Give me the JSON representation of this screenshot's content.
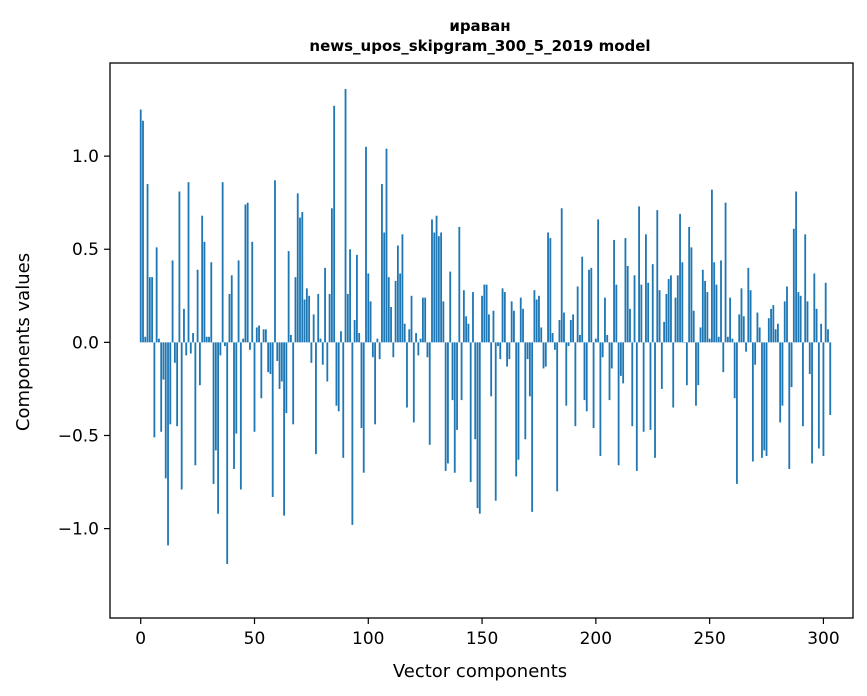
{
  "chart_data": {
    "type": "bar",
    "title": "иравaн",
    "subtitle": "news_upos_skipgram_300_5_2019 model",
    "xlabel": "Vector components",
    "ylabel": "Components values",
    "xlim": [
      -13.5,
      313
    ],
    "ylim": [
      -1.48,
      1.5
    ],
    "x_ticks": [
      0,
      50,
      100,
      150,
      200,
      250,
      300
    ],
    "x_tick_labels": [
      "0",
      "50",
      "100",
      "150",
      "200",
      "250",
      "300"
    ],
    "y_ticks": [
      -1.0,
      -0.5,
      0.0,
      0.5,
      1.0
    ],
    "y_tick_labels": [
      "−1.0",
      "−0.5",
      "0.0",
      "0.5",
      "1.0"
    ],
    "grid": false,
    "bar_color": "#1f77b4",
    "values": [
      1.25,
      1.19,
      0.03,
      0.85,
      0.35,
      0.35,
      -0.51,
      0.51,
      0.02,
      -0.48,
      -0.2,
      -0.73,
      -1.09,
      -0.44,
      0.44,
      -0.11,
      -0.45,
      0.81,
      -0.79,
      0.18,
      -0.07,
      0.86,
      -0.06,
      0.05,
      -0.66,
      0.39,
      -0.23,
      0.68,
      0.54,
      0.03,
      0.03,
      0.43,
      -0.76,
      -0.58,
      -0.92,
      -0.07,
      0.86,
      -0.02,
      -1.19,
      0.26,
      0.36,
      -0.68,
      -0.49,
      0.44,
      -0.79,
      0.02,
      0.74,
      0.75,
      -0.04,
      0.54,
      -0.48,
      0.08,
      0.09,
      -0.3,
      0.07,
      0.07,
      -0.16,
      -0.17,
      -0.83,
      0.87,
      -0.1,
      -0.25,
      -0.21,
      -0.93,
      -0.38,
      0.49,
      0.04,
      -0.44,
      0.35,
      0.8,
      0.67,
      0.7,
      0.23,
      0.29,
      0.25,
      -0.11,
      0.15,
      -0.6,
      0.26,
      0.02,
      -0.12,
      0.4,
      -0.21,
      0.26,
      0.72,
      1.27,
      -0.34,
      -0.37,
      0.06,
      -0.62,
      1.36,
      0.26,
      0.5,
      -0.98,
      0.12,
      0.47,
      0.05,
      -0.46,
      -0.7,
      1.05,
      0.37,
      0.22,
      -0.08,
      -0.44,
      0.02,
      -0.09,
      0.85,
      0.59,
      1.04,
      0.35,
      0.19,
      -0.08,
      0.33,
      0.52,
      0.37,
      0.58,
      0.1,
      -0.35,
      0.07,
      0.25,
      -0.43,
      0.05,
      -0.07,
      0.02,
      0.24,
      0.24,
      -0.08,
      -0.55,
      0.66,
      0.59,
      0.68,
      0.57,
      0.59,
      0.22,
      -0.69,
      -0.65,
      0.38,
      -0.31,
      -0.7,
      -0.47,
      0.62,
      -0.31,
      0.28,
      0.14,
      0.1,
      -0.75,
      0.27,
      -0.52,
      -0.89,
      -0.92,
      0.25,
      0.31,
      0.31,
      0.15,
      -0.29,
      0.17,
      -0.85,
      -0.02,
      -0.09,
      0.29,
      0.27,
      -0.13,
      -0.09,
      0.22,
      0.17,
      -0.72,
      -0.63,
      0.24,
      0.18,
      -0.52,
      -0.09,
      -0.29,
      -0.91,
      0.28,
      0.23,
      0.25,
      0.08,
      -0.14,
      -0.13,
      0.59,
      0.56,
      0.05,
      -0.04,
      -0.8,
      0.12,
      0.72,
      0.16,
      -0.34,
      -0.02,
      0.12,
      0.15,
      -0.45,
      0.3,
      0.04,
      0.46,
      -0.31,
      -0.37,
      0.39,
      0.4,
      -0.46,
      0.02,
      0.66,
      -0.61,
      -0.08,
      0.24,
      0.04,
      -0.31,
      -0.14,
      0.55,
      0.31,
      -0.66,
      -0.18,
      -0.22,
      0.56,
      0.41,
      0.18,
      -0.45,
      0.36,
      -0.69,
      0.73,
      0.31,
      -0.48,
      0.58,
      0.32,
      -0.47,
      0.42,
      -0.62,
      0.71,
      0.28,
      -0.25,
      0.11,
      0.26,
      0.34,
      0.36,
      -0.35,
      0.24,
      0.36,
      0.69,
      0.43,
      0.0,
      -0.23,
      0.62,
      0.51,
      0.17,
      -0.34,
      -0.23,
      0.08,
      0.39,
      0.33,
      0.27,
      0.02,
      0.82,
      0.43,
      0.31,
      0.03,
      0.44,
      -0.16,
      0.75,
      0.03,
      0.24,
      0.02,
      -0.3,
      -0.76,
      0.15,
      0.29,
      0.14,
      -0.05,
      0.4,
      0.28,
      -0.64,
      -0.12,
      0.16,
      0.08,
      -0.62,
      -0.58,
      -0.61,
      0.13,
      0.18,
      0.2,
      0.07,
      0.1,
      -0.43,
      -0.34,
      0.22,
      0.3,
      -0.68,
      -0.24,
      0.61,
      0.81,
      0.27,
      0.25,
      -0.45,
      0.58,
      0.22,
      -0.17,
      -0.65,
      0.37,
      0.18,
      -0.57,
      0.1,
      -0.61,
      0.32,
      0.07,
      -0.39
    ]
  }
}
